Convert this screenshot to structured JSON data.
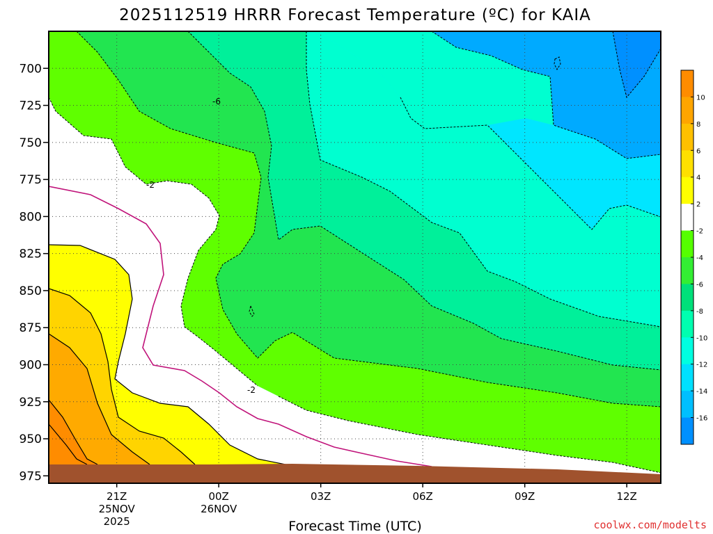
{
  "chart_data": {
    "type": "heatmap",
    "title": "2025112519 HRRR Forecast Temperature (ºC) for KAIA",
    "xlabel": "Forecast Time (UTC)",
    "ylabel": "",
    "credit": "coolwx.com/modelts",
    "x_ticks": [
      {
        "label": "21Z",
        "date1": "25NOV",
        "date2": "2025",
        "hours": 2
      },
      {
        "label": "00Z",
        "date1": "26NOV",
        "date2": "",
        "hours": 5
      },
      {
        "label": "03Z",
        "date1": "",
        "date2": "",
        "hours": 8
      },
      {
        "label": "06Z",
        "date1": "",
        "date2": "",
        "hours": 11
      },
      {
        "label": "09Z",
        "date1": "",
        "date2": "",
        "hours": 14
      },
      {
        "label": "12Z",
        "date1": "",
        "date2": "",
        "hours": 17
      }
    ],
    "x_range_hours": [
      0,
      18
    ],
    "y_ticks": [
      700,
      725,
      750,
      775,
      800,
      825,
      850,
      875,
      900,
      925,
      950,
      975
    ],
    "y_range_hpa": [
      675,
      980
    ],
    "colorbar": {
      "levels": [
        10,
        8,
        6,
        4,
        2,
        -2,
        -4,
        -6,
        -8,
        -10,
        -12,
        -14,
        -16
      ],
      "colors": [
        "#ff8c00",
        "#ffa500",
        "#ffc000",
        "#ffe000",
        "#ffff00",
        "#ffffff",
        "#55ff00",
        "#33ee33",
        "#00e07a",
        "#00ffb0",
        "#00ffe0",
        "#00e0ff",
        "#00bfff",
        "#0090ff"
      ]
    },
    "contour_labels": [
      "-6",
      "-2",
      "-2"
    ],
    "ground_color": "#a0522d",
    "grid": true
  }
}
